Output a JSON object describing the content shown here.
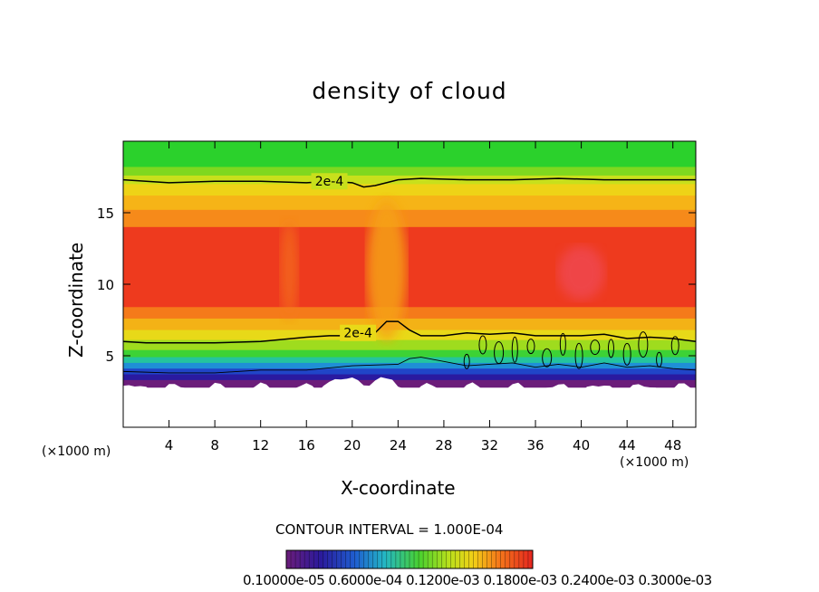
{
  "chart_data": {
    "type": "heatmap",
    "title": "density of cloud",
    "xlabel": "X-coordinate",
    "ylabel": "Z-coordinate",
    "x_unit_label": "(×1000 m)",
    "y_unit_label": "(×1000 m)",
    "xlim": [
      0,
      50
    ],
    "ylim": [
      0,
      20
    ],
    "x_ticks": [
      "4",
      "8",
      "12",
      "16",
      "20",
      "24",
      "28",
      "32",
      "36",
      "40",
      "44",
      "48"
    ],
    "y_ticks": [
      "5",
      "10",
      "15"
    ],
    "grid": false,
    "colormap": "rainbow (purple-blue-cyan-green-yellow-orange-red)",
    "cloud_base_km": 3,
    "cloud_top_km": 20,
    "max_density_level_km": 11,
    "contour_lines": [
      {
        "label": "2e-4",
        "level": 0.0002,
        "x": [
          0,
          4,
          8,
          12,
          16,
          18,
          20,
          21,
          22,
          24,
          26,
          30,
          34,
          38,
          42,
          46,
          50
        ],
        "z": [
          17.3,
          17.1,
          17.2,
          17.2,
          17.1,
          17.2,
          17.1,
          16.8,
          16.9,
          17.3,
          17.4,
          17.3,
          17.3,
          17.4,
          17.3,
          17.3,
          17.3
        ]
      },
      {
        "label": "2e-4",
        "level": 0.0002,
        "x": [
          0,
          2,
          4,
          8,
          12,
          16,
          18,
          20,
          22,
          23,
          24,
          25,
          26,
          28,
          30,
          32,
          34,
          36,
          38,
          40,
          42,
          44,
          46,
          48,
          50
        ],
        "z": [
          6.0,
          5.9,
          5.9,
          5.9,
          6.0,
          6.3,
          6.4,
          6.4,
          6.6,
          7.4,
          7.4,
          6.8,
          6.4,
          6.4,
          6.6,
          6.5,
          6.6,
          6.4,
          6.4,
          6.4,
          6.5,
          6.2,
          6.3,
          6.2,
          6.0
        ]
      },
      {
        "label": "",
        "level": 0.0001,
        "x": [
          0,
          4,
          8,
          12,
          16,
          20,
          24,
          25,
          26,
          28,
          30,
          32,
          34,
          36,
          38,
          40,
          42,
          44,
          46,
          48,
          50
        ],
        "z": [
          3.9,
          3.8,
          3.8,
          4.0,
          4.0,
          4.3,
          4.4,
          4.8,
          4.9,
          4.6,
          4.3,
          4.4,
          4.5,
          4.2,
          4.4,
          4.2,
          4.5,
          4.2,
          4.3,
          4.1,
          4.0
        ]
      }
    ],
    "contour_interval_text": "CONTOUR INTERVAL = 1.000E-04",
    "colorbar_labels_text": "0.10000e-05 0.6000e-04 0.1200e-03 0.1800e-03 0.2400e-03 0.3000e-03"
  }
}
